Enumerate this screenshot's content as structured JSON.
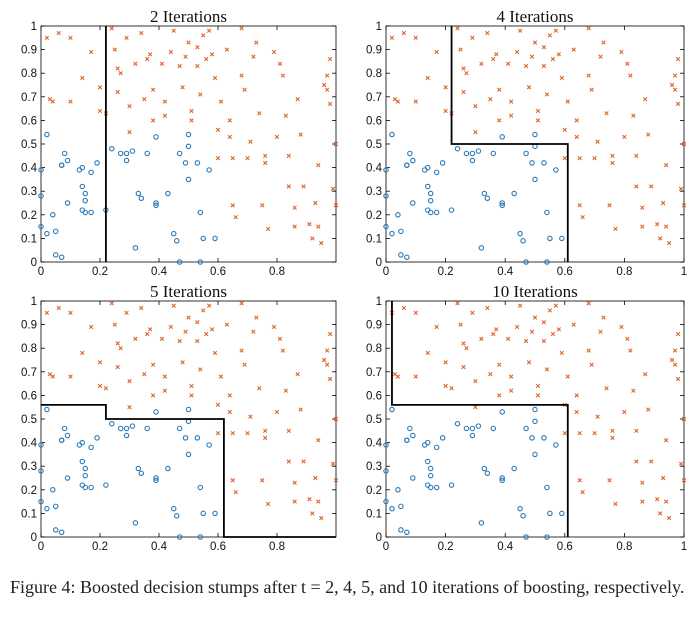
{
  "chart_data": [
    {
      "type": "scatter",
      "title": "2 Iterations",
      "xlim": [
        0,
        1
      ],
      "ylim": [
        0,
        1
      ],
      "xticks": [
        "0",
        "0.2",
        "0.4",
        "0.6",
        "0.8"
      ],
      "yticks": [
        "0",
        "0.1",
        "0.2",
        "0.3",
        "0.4",
        "0.5",
        "0.6",
        "0.7",
        "0.8",
        "0.9",
        "1"
      ],
      "boundary": [
        [
          0.22,
          1.0
        ],
        [
          0.22,
          0.0
        ]
      ]
    },
    {
      "type": "scatter",
      "title": "4 Iterations",
      "xlim": [
        0,
        1
      ],
      "ylim": [
        0,
        1
      ],
      "xticks": [
        "0",
        "0.2",
        "0.4",
        "0.6",
        "0.8",
        "1"
      ],
      "yticks": [
        "0",
        "0.1",
        "0.2",
        "0.3",
        "0.4",
        "0.5",
        "0.6",
        "0.7",
        "0.8",
        "0.9",
        "1"
      ],
      "boundary": [
        [
          0.22,
          1.0
        ],
        [
          0.22,
          0.5
        ],
        [
          0.61,
          0.5
        ],
        [
          0.61,
          0.0
        ]
      ]
    },
    {
      "type": "scatter",
      "title": "5 Iterations",
      "xlim": [
        0,
        1
      ],
      "ylim": [
        0,
        1
      ],
      "xticks": [
        "0",
        "0.2",
        "0.4",
        "0.6",
        "0.8"
      ],
      "yticks": [
        "0",
        "0.1",
        "0.2",
        "0.3",
        "0.4",
        "0.5",
        "0.6",
        "0.7",
        "0.8",
        "0.9",
        "1"
      ],
      "boundary": [
        [
          0.0,
          0.56
        ],
        [
          0.22,
          0.56
        ],
        [
          0.22,
          0.5
        ],
        [
          0.62,
          0.5
        ],
        [
          0.62,
          0.0
        ],
        [
          1.0,
          0.0
        ]
      ]
    },
    {
      "type": "scatter",
      "title": "10 Iterations",
      "xlim": [
        0,
        1
      ],
      "ylim": [
        0,
        1
      ],
      "xticks": [
        "0",
        "0.2",
        "0.4",
        "0.6",
        "0.8",
        "1"
      ],
      "yticks": [
        "0",
        "0.1",
        "0.2",
        "0.3",
        "0.4",
        "0.5",
        "0.6",
        "0.7",
        "0.8",
        "0.9",
        "1"
      ],
      "boundary": [
        [
          0.02,
          1.0
        ],
        [
          0.02,
          0.56
        ],
        [
          0.61,
          0.56
        ],
        [
          0.61,
          0.0
        ]
      ]
    }
  ],
  "points": {
    "circle_color": "#2a7ab9",
    "cross_color": "#e0642a",
    "circles": [
      [
        0.02,
        0.54
      ],
      [
        0.0,
        0.39
      ],
      [
        0.0,
        0.28
      ],
      [
        0.04,
        0.2
      ],
      [
        0.0,
        0.15
      ],
      [
        0.02,
        0.12
      ],
      [
        0.05,
        0.13
      ],
      [
        0.05,
        0.03
      ],
      [
        0.07,
        0.02
      ],
      [
        0.07,
        0.41
      ],
      [
        0.07,
        0.41
      ],
      [
        0.08,
        0.46
      ],
      [
        0.09,
        0.43
      ],
      [
        0.09,
        0.25
      ],
      [
        0.13,
        0.39
      ],
      [
        0.14,
        0.4
      ],
      [
        0.14,
        0.32
      ],
      [
        0.15,
        0.29
      ],
      [
        0.15,
        0.26
      ],
      [
        0.14,
        0.22
      ],
      [
        0.15,
        0.21
      ],
      [
        0.17,
        0.21
      ],
      [
        0.17,
        0.38
      ],
      [
        0.19,
        0.42
      ],
      [
        0.22,
        0.22
      ],
      [
        0.24,
        0.48
      ],
      [
        0.27,
        0.46
      ],
      [
        0.29,
        0.46
      ],
      [
        0.29,
        0.43
      ],
      [
        0.31,
        0.47
      ],
      [
        0.33,
        0.29
      ],
      [
        0.34,
        0.27
      ],
      [
        0.32,
        0.06
      ],
      [
        0.36,
        0.46
      ],
      [
        0.39,
        0.53
      ],
      [
        0.39,
        0.25
      ],
      [
        0.39,
        0.24
      ],
      [
        0.43,
        0.29
      ],
      [
        0.45,
        0.12
      ],
      [
        0.46,
        0.09
      ],
      [
        0.47,
        0.46
      ],
      [
        0.5,
        0.54
      ],
      [
        0.49,
        0.42
      ],
      [
        0.5,
        0.49
      ],
      [
        0.5,
        0.35
      ],
      [
        0.47,
        0.0
      ],
      [
        0.54,
        0.0
      ],
      [
        0.53,
        0.42
      ],
      [
        0.54,
        0.21
      ],
      [
        0.55,
        0.1
      ],
      [
        0.57,
        0.39
      ],
      [
        0.59,
        0.1
      ]
    ],
    "crosses": [
      [
        0.02,
        0.95
      ],
      [
        0.03,
        0.69
      ],
      [
        0.04,
        0.68
      ],
      [
        0.06,
        0.97
      ],
      [
        0.1,
        0.95
      ],
      [
        0.1,
        0.68
      ],
      [
        0.14,
        0.78
      ],
      [
        0.17,
        0.89
      ],
      [
        0.2,
        0.74
      ],
      [
        0.2,
        0.64
      ],
      [
        0.22,
        0.63
      ],
      [
        0.24,
        0.99
      ],
      [
        0.25,
        0.9
      ],
      [
        0.26,
        0.82
      ],
      [
        0.27,
        0.8
      ],
      [
        0.26,
        0.72
      ],
      [
        0.29,
        0.95
      ],
      [
        0.3,
        0.66
      ],
      [
        0.3,
        0.55
      ],
      [
        0.32,
        0.84
      ],
      [
        0.34,
        0.97
      ],
      [
        0.35,
        0.69
      ],
      [
        0.36,
        0.86
      ],
      [
        0.37,
        0.88
      ],
      [
        0.38,
        0.73
      ],
      [
        0.38,
        0.6
      ],
      [
        0.41,
        0.84
      ],
      [
        0.42,
        0.68
      ],
      [
        0.42,
        0.62
      ],
      [
        0.44,
        0.89
      ],
      [
        0.45,
        0.98
      ],
      [
        0.47,
        0.83
      ],
      [
        0.48,
        0.74
      ],
      [
        0.49,
        0.87
      ],
      [
        0.5,
        0.93
      ],
      [
        0.51,
        0.64
      ],
      [
        0.51,
        0.6
      ],
      [
        0.53,
        0.91
      ],
      [
        0.53,
        0.83
      ],
      [
        0.54,
        0.71
      ],
      [
        0.55,
        0.96
      ],
      [
        0.57,
        0.98
      ],
      [
        0.56,
        0.86
      ],
      [
        0.58,
        0.88
      ],
      [
        0.59,
        0.78
      ],
      [
        0.6,
        0.56
      ],
      [
        0.6,
        0.44
      ],
      [
        0.61,
        0.68
      ],
      [
        0.63,
        0.9
      ],
      [
        0.64,
        0.6
      ],
      [
        0.64,
        0.53
      ],
      [
        0.65,
        0.44
      ],
      [
        0.65,
        0.24
      ],
      [
        0.66,
        0.19
      ],
      [
        0.68,
        0.99
      ],
      [
        0.68,
        0.79
      ],
      [
        0.69,
        0.73
      ],
      [
        0.7,
        0.44
      ],
      [
        0.71,
        0.51
      ],
      [
        0.72,
        0.87
      ],
      [
        0.73,
        0.93
      ],
      [
        0.74,
        0.63
      ],
      [
        0.76,
        0.45
      ],
      [
        0.76,
        0.42
      ],
      [
        0.75,
        0.24
      ],
      [
        0.77,
        0.14
      ],
      [
        0.79,
        0.89
      ],
      [
        0.8,
        0.53
      ],
      [
        0.81,
        0.84
      ],
      [
        0.82,
        0.79
      ],
      [
        0.83,
        0.62
      ],
      [
        0.84,
        0.45
      ],
      [
        0.84,
        0.32
      ],
      [
        0.86,
        0.23
      ],
      [
        0.86,
        0.15
      ],
      [
        0.87,
        0.69
      ],
      [
        0.88,
        0.54
      ],
      [
        0.89,
        0.32
      ],
      [
        0.91,
        0.16
      ],
      [
        0.92,
        0.1
      ],
      [
        0.93,
        0.25
      ],
      [
        0.94,
        0.15
      ],
      [
        0.94,
        0.41
      ],
      [
        0.95,
        0.08
      ],
      [
        0.96,
        0.75
      ],
      [
        0.97,
        0.79
      ],
      [
        0.97,
        0.73
      ],
      [
        0.98,
        0.67
      ],
      [
        0.98,
        0.86
      ],
      [
        0.99,
        0.31
      ],
      [
        1.0,
        0.24
      ],
      [
        1.0,
        0.5
      ]
    ]
  },
  "caption": "Figure 4:  Boosted decision stumps after t = 2, 4, 5, and 10 iterations of boosting, respectively."
}
